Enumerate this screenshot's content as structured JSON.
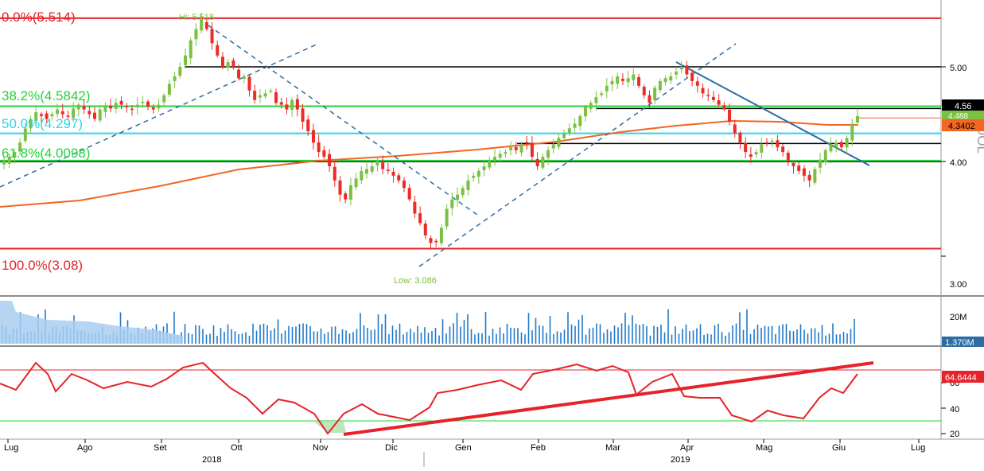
{
  "chart_data": {
    "type": "candlestick",
    "price": {
      "ticks": [
        "5.00",
        "4.00",
        "3.00"
      ],
      "tick_values": [
        5.0,
        4.0,
        3.0
      ],
      "ylim": [
        2.9,
        5.64
      ],
      "hi_label": "Hi: 5.518",
      "low_label": "Low: 3.086",
      "fib_levels": [
        {
          "label": "0.0%(5.514)",
          "value": 5.514
        },
        {
          "label": "38.2%(4.5842)",
          "value": 4.5842
        },
        {
          "label": "50.0%(4.297)",
          "value": 4.297
        },
        {
          "label": "61.8%(4.0098)",
          "value": 4.0098
        },
        {
          "label": "100.0%(3.08)",
          "value": 3.08
        }
      ],
      "resistance_levels": [
        5.0,
        4.56,
        4.19
      ],
      "badges": [
        {
          "label": "4.56",
          "value": 4.56,
          "color": "#000000"
        },
        {
          "label": "4.488",
          "value": 4.488,
          "color": "#7ac142"
        },
        {
          "label": "4.3402",
          "value": 4.3402,
          "color": "#f26522"
        }
      ],
      "axis_label": "DOL",
      "close_estimates": [
        4.0,
        4.05,
        4.1,
        4.2,
        4.35,
        4.45,
        4.52,
        4.48,
        4.45,
        4.5,
        4.55,
        4.5,
        4.48,
        4.56,
        4.6,
        4.55,
        4.5,
        4.45,
        4.55,
        4.58,
        4.56,
        4.62,
        4.6,
        4.58,
        4.55,
        4.6,
        4.63,
        4.58,
        4.55,
        4.6,
        4.7,
        4.82,
        4.9,
        5.0,
        5.12,
        5.28,
        5.4,
        5.5,
        5.4,
        5.25,
        5.12,
        5.0,
        5.05,
        5.0,
        4.88,
        4.9,
        4.75,
        4.65,
        4.7,
        4.72,
        4.75,
        4.62,
        4.6,
        4.55,
        4.65,
        4.55,
        4.42,
        4.32,
        4.2,
        4.1,
        4.05,
        3.95,
        3.8,
        3.65,
        3.6,
        3.75,
        3.82,
        3.9,
        3.92,
        3.95,
        4.0,
        3.92,
        3.9,
        3.85,
        3.8,
        3.72,
        3.6,
        3.45,
        3.35,
        3.22,
        3.14,
        3.15,
        3.3,
        3.5,
        3.6,
        3.65,
        3.72,
        3.8,
        3.85,
        3.9,
        3.95,
        4.0,
        4.05,
        4.08,
        4.1,
        4.15,
        4.12,
        4.18,
        4.2,
        4.05,
        3.95,
        4.05,
        4.12,
        4.18,
        4.25,
        4.3,
        4.35,
        4.4,
        4.48,
        4.58,
        4.62,
        4.68,
        4.72,
        4.8,
        4.85,
        4.9,
        4.85,
        4.88,
        4.92,
        4.8,
        4.7,
        4.62,
        4.78,
        4.85,
        4.88,
        4.9,
        4.95,
        5.0,
        4.92,
        4.85,
        4.8,
        4.72,
        4.7,
        4.65,
        4.6,
        4.55,
        4.42,
        4.3,
        4.2,
        4.1,
        4.05,
        4.1,
        4.18,
        4.2,
        4.22,
        4.15,
        4.1,
        4.0,
        3.95,
        3.9,
        3.85,
        3.8,
        3.92,
        4.02,
        4.12,
        4.18,
        4.2,
        4.15,
        4.25,
        4.4,
        4.48
      ]
    },
    "volume": {
      "ticks": [
        "20M"
      ],
      "last_label": "1.370M",
      "last_value_millions": 1.37
    },
    "rsi": {
      "ticks": [
        "60",
        "40",
        "20"
      ],
      "tick_values": [
        60,
        40,
        20
      ],
      "ylim": [
        16,
        78
      ],
      "reference_lines": [
        70,
        30
      ],
      "last_label": "64.6444",
      "last_value": 64.6444
    },
    "x_axis": {
      "months": [
        "Lug",
        "Ago",
        "Set",
        "Ott",
        "Nov",
        "Dic",
        "Gen",
        "Feb",
        "Mar",
        "Apr",
        "Mag",
        "Giu",
        "Lug"
      ],
      "years": [
        "2018",
        "2019"
      ]
    },
    "colors": {
      "up_candle": "#7ac142",
      "down_candle": "#ee2a24",
      "fib_outer": "#e6222a",
      "fib_inner": "#23d33b",
      "fib_mid": "#2bd5e6",
      "moving_average": "#f26522",
      "trendline": "#2e6da4",
      "volume": "#1f78c8",
      "rsi_line": "#e6222a"
    }
  }
}
